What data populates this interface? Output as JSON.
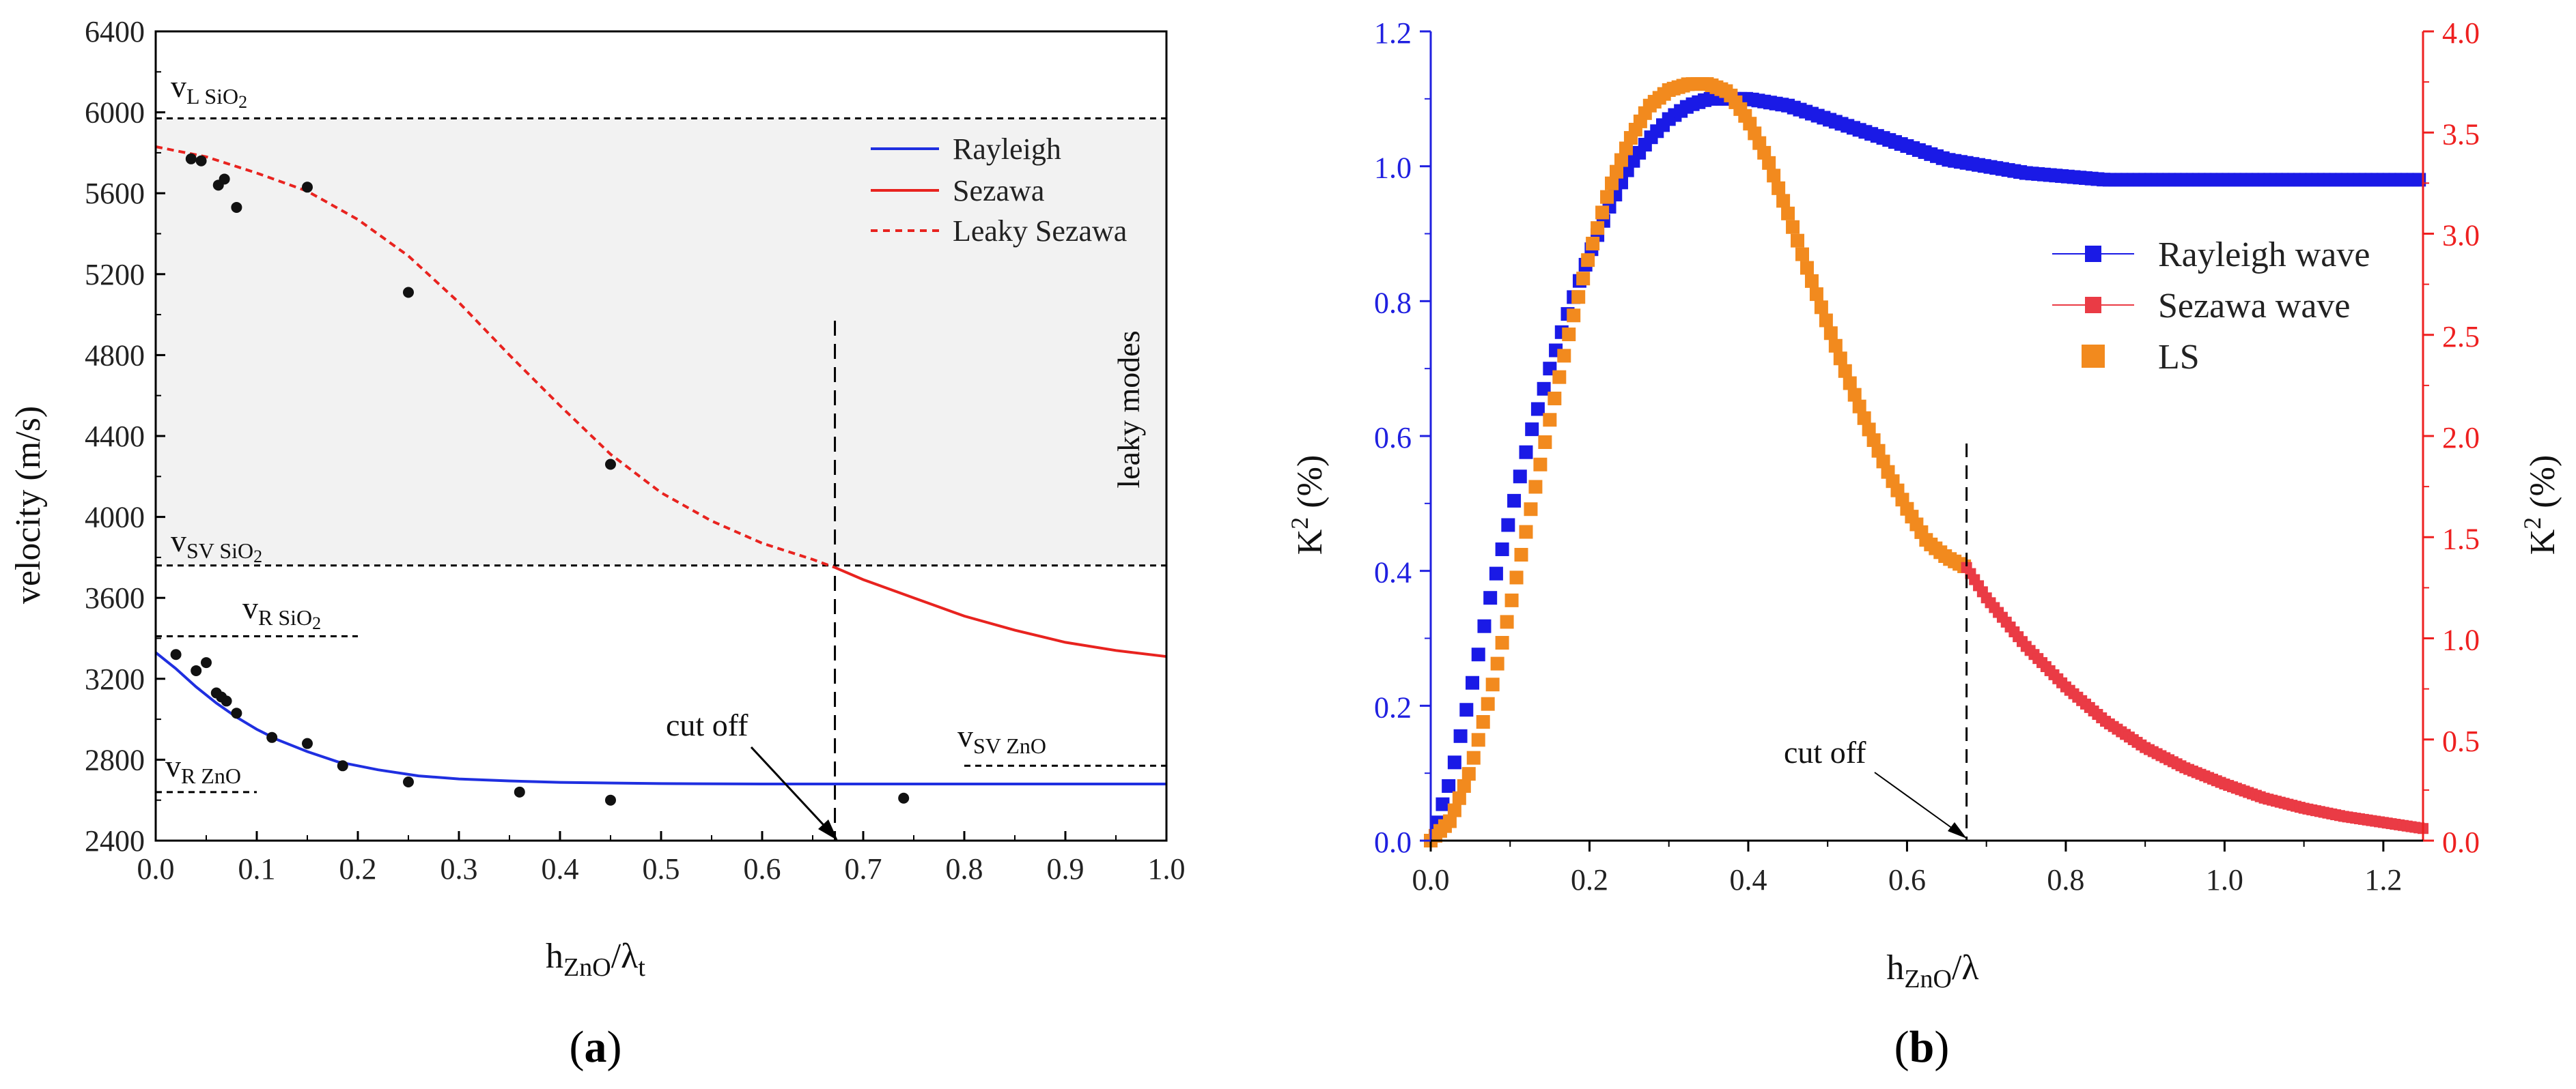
{
  "panels": {
    "a": {
      "label_open": "(",
      "label_letter": "a",
      "label_close": ")",
      "xlabel_main": "h",
      "xlabel_sub": "ZnO",
      "xlabel_slash": "/λ",
      "xlabel_sub2": "t",
      "ylabel": "velocity (m/s)",
      "reference_lines": {
        "vL_SiO2": {
          "v": "v",
          "sub": "L SiO",
          "sub2": "2",
          "value": 5970
        },
        "vSV_SiO2": {
          "v": "v",
          "sub": "SV SiO",
          "sub2": "2",
          "value": 3760
        },
        "vR_SiO2": {
          "v": "v",
          "sub": "R SiO",
          "sub2": "2",
          "value": 3410
        },
        "vR_ZnO": {
          "v": "v",
          "sub": "R ZnO",
          "value": 2640
        },
        "vSV_ZnO": {
          "v": "v",
          "sub": "SV ZnO",
          "value": 2770
        }
      },
      "leaky_region_label": "leaky modes",
      "cutoff_label": "cut off",
      "cutoff_x": 0.672
    },
    "b": {
      "label_open": "(",
      "label_letter": "b",
      "label_close": ")",
      "xlabel_main": "h",
      "xlabel_sub": "ZnO",
      "xlabel_slash": "/λ",
      "ylabel_left": "K",
      "ylabel_left_sup": "2",
      "ylabel_left_unit": " (%)",
      "ylabel_right": "K",
      "ylabel_right_sup": "2",
      "ylabel_right_unit": " (%)",
      "cutoff_label": "cut off",
      "cutoff_x": 0.675
    }
  },
  "colors": {
    "rayleigh_a": "#1f2fe0",
    "sezawa_a": "#e8231f",
    "leaky_a": "#e8231f",
    "points": "#111111",
    "shade": "#f2f2f2",
    "rayleigh_b": "#1a1ae6",
    "sezawa_b": "#ea3b45",
    "ls_b": "#f28a1e",
    "left_axis_b": "#2020e0",
    "right_axis_b": "#ee2020"
  },
  "chart_data": [
    {
      "panel": "a",
      "type": "line",
      "xlabel": "hZnO/λt",
      "ylabel": "velocity (m/s)",
      "xlim": [
        0,
        1.0
      ],
      "ylim": [
        2400,
        6400
      ],
      "xticks": [
        "0.0",
        "0.1",
        "0.2",
        "0.3",
        "0.4",
        "0.5",
        "0.6",
        "0.7",
        "0.8",
        "0.9",
        "1.0"
      ],
      "yticks": [
        "2400",
        "2800",
        "3200",
        "3600",
        "4000",
        "4400",
        "4800",
        "5200",
        "5600",
        "6000",
        "6400"
      ],
      "legend_position": "top-right",
      "series": [
        {
          "name": "Rayleigh",
          "style": "solid",
          "x": [
            0.0,
            0.02,
            0.04,
            0.06,
            0.08,
            0.1,
            0.12,
            0.15,
            0.18,
            0.22,
            0.26,
            0.3,
            0.35,
            0.4,
            0.5,
            0.6,
            0.7,
            0.8,
            0.9,
            1.0
          ],
          "y": [
            3330,
            3250,
            3160,
            3080,
            3010,
            2950,
            2900,
            2840,
            2790,
            2750,
            2720,
            2705,
            2695,
            2688,
            2682,
            2680,
            2680,
            2680,
            2680,
            2680
          ]
        },
        {
          "name": "Sezawa",
          "style": "solid",
          "x": [
            0.672,
            0.7,
            0.75,
            0.8,
            0.85,
            0.9,
            0.95,
            1.0
          ],
          "y": [
            3750,
            3690,
            3600,
            3510,
            3440,
            3380,
            3340,
            3310
          ]
        },
        {
          "name": "Leaky Sezawa",
          "style": "dashed",
          "x": [
            0.0,
            0.05,
            0.1,
            0.15,
            0.2,
            0.25,
            0.3,
            0.35,
            0.4,
            0.45,
            0.5,
            0.55,
            0.6,
            0.65,
            0.672
          ],
          "y": [
            5830,
            5780,
            5700,
            5610,
            5470,
            5290,
            5060,
            4800,
            4550,
            4310,
            4120,
            3980,
            3870,
            3790,
            3750
          ]
        }
      ],
      "points": {
        "x": [
          0.02,
          0.04,
          0.05,
          0.06,
          0.065,
          0.07,
          0.08,
          0.115,
          0.15,
          0.185,
          0.25,
          0.36,
          0.45,
          0.74,
          0.035,
          0.045,
          0.062,
          0.068,
          0.08,
          0.15,
          0.25,
          0.45
        ],
        "y": [
          3320,
          3240,
          3280,
          3130,
          3110,
          3090,
          3030,
          2910,
          2880,
          2770,
          2690,
          2640,
          2600,
          2610,
          5770,
          5760,
          5640,
          5670,
          5530,
          5630,
          5110,
          4260
        ]
      }
    },
    {
      "panel": "b",
      "type": "scatter",
      "xlabel": "hZnO/λ",
      "ylabel_left": "K2 (%)",
      "ylabel_right": "K2 (%)",
      "xlim": [
        0,
        1.25
      ],
      "ylim_left": [
        0,
        1.2
      ],
      "ylim_right": [
        0,
        4.0
      ],
      "xticks": [
        "0.0",
        "0.2",
        "0.4",
        "0.6",
        "0.8",
        "1.0",
        "1.2"
      ],
      "yticks_left": [
        "0.0",
        "0.2",
        "0.4",
        "0.6",
        "0.8",
        "1.0",
        "1.2"
      ],
      "yticks_right": [
        "0.0",
        "0.5",
        "1.0",
        "1.5",
        "2.0",
        "2.5",
        "3.0",
        "3.5",
        "4.0"
      ],
      "legend_position": "right",
      "series": [
        {
          "name": "Rayleigh wave",
          "axis": "left",
          "x": [
            0.0,
            0.025,
            0.05,
            0.075,
            0.1,
            0.125,
            0.15,
            0.175,
            0.2,
            0.225,
            0.25,
            0.275,
            0.3,
            0.325,
            0.35,
            0.375,
            0.4,
            0.45,
            0.5,
            0.55,
            0.6,
            0.65,
            0.7,
            0.75,
            0.8,
            0.85,
            0.9,
            0.95,
            1.0,
            1.05,
            1.1,
            1.15,
            1.2,
            1.25
          ],
          "y": [
            0.0,
            0.09,
            0.22,
            0.36,
            0.48,
            0.6,
            0.7,
            0.79,
            0.87,
            0.94,
            1.0,
            1.04,
            1.07,
            1.09,
            1.1,
            1.1,
            1.1,
            1.09,
            1.07,
            1.05,
            1.03,
            1.01,
            1.0,
            0.99,
            0.985,
            0.98,
            0.98,
            0.98,
            0.98,
            0.98,
            0.98,
            0.98,
            0.98,
            0.98
          ]
        },
        {
          "name": "LS",
          "axis": "right",
          "x": [
            0.0,
            0.025,
            0.05,
            0.075,
            0.1,
            0.125,
            0.15,
            0.175,
            0.2,
            0.225,
            0.25,
            0.275,
            0.3,
            0.325,
            0.35,
            0.375,
            0.4,
            0.425,
            0.45,
            0.475,
            0.5,
            0.525,
            0.55,
            0.575,
            0.6,
            0.625,
            0.65,
            0.675
          ],
          "y": [
            0.0,
            0.1,
            0.35,
            0.72,
            1.15,
            1.62,
            2.08,
            2.52,
            2.9,
            3.22,
            3.46,
            3.63,
            3.71,
            3.74,
            3.74,
            3.7,
            3.56,
            3.36,
            3.1,
            2.82,
            2.55,
            2.29,
            2.05,
            1.83,
            1.64,
            1.48,
            1.4,
            1.35
          ]
        },
        {
          "name": "Sezawa wave",
          "axis": "right",
          "x": [
            0.675,
            0.7,
            0.75,
            0.8,
            0.85,
            0.9,
            0.95,
            1.0,
            1.05,
            1.1,
            1.15,
            1.2,
            1.25
          ],
          "y": [
            1.35,
            1.2,
            0.96,
            0.76,
            0.59,
            0.46,
            0.36,
            0.28,
            0.21,
            0.16,
            0.12,
            0.09,
            0.06
          ]
        }
      ]
    }
  ]
}
